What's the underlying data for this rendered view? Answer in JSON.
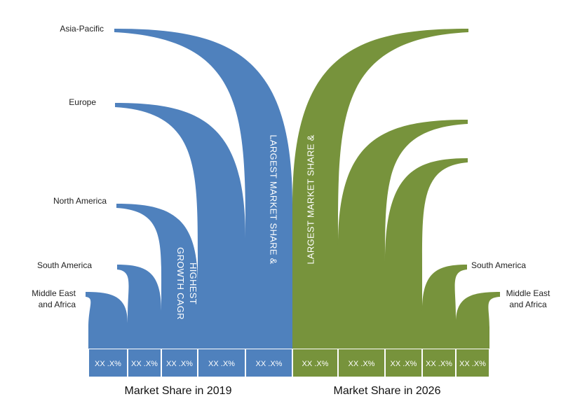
{
  "chart_data": {
    "type": "area",
    "colors": {
      "year_2019": "#4f81bd",
      "year_2026": "#77933c"
    },
    "groups": [
      {
        "name": "Market Share in 2019",
        "color_key": "year_2019",
        "bars": [
          {
            "region": "Middle East and Africa",
            "label_lines": [
              "Middle East",
              "and Africa"
            ],
            "value_label": "XX .X%"
          },
          {
            "region": "South America",
            "label_lines": [
              "South America"
            ],
            "value_label": "XX .X%"
          },
          {
            "region": "North America",
            "label_lines": [
              "North America"
            ],
            "value_label": "XX .X%",
            "note_lines": [
              "HIGHEST",
              "GROWTH CAGR"
            ]
          },
          {
            "region": "Europe",
            "label_lines": [
              "Europe"
            ],
            "value_label": "XX .X%"
          },
          {
            "region": "Asia-Pacific",
            "label_lines": [
              "Asia-Pacific"
            ],
            "value_label": "XX .X%",
            "note_lines": [
              "LARGEST MARKET SHARE &"
            ]
          }
        ]
      },
      {
        "name": "Market Share in 2026",
        "color_key": "year_2026",
        "bars": [
          {
            "region": "Asia-Pacific",
            "value_label": "XX .X%",
            "note_lines": [
              "LARGEST MARKET SHARE &"
            ]
          },
          {
            "region": "Europe",
            "value_label": "XX .X%"
          },
          {
            "region": "North America",
            "value_label": "XX .X%"
          },
          {
            "region": "South America",
            "label_lines": [
              "South America"
            ],
            "value_label": "XX .X%"
          },
          {
            "region": "Middle East and Africa",
            "label_lines": [
              "Middle East",
              "and Africa"
            ],
            "value_label": "XX .X%"
          }
        ]
      }
    ]
  }
}
